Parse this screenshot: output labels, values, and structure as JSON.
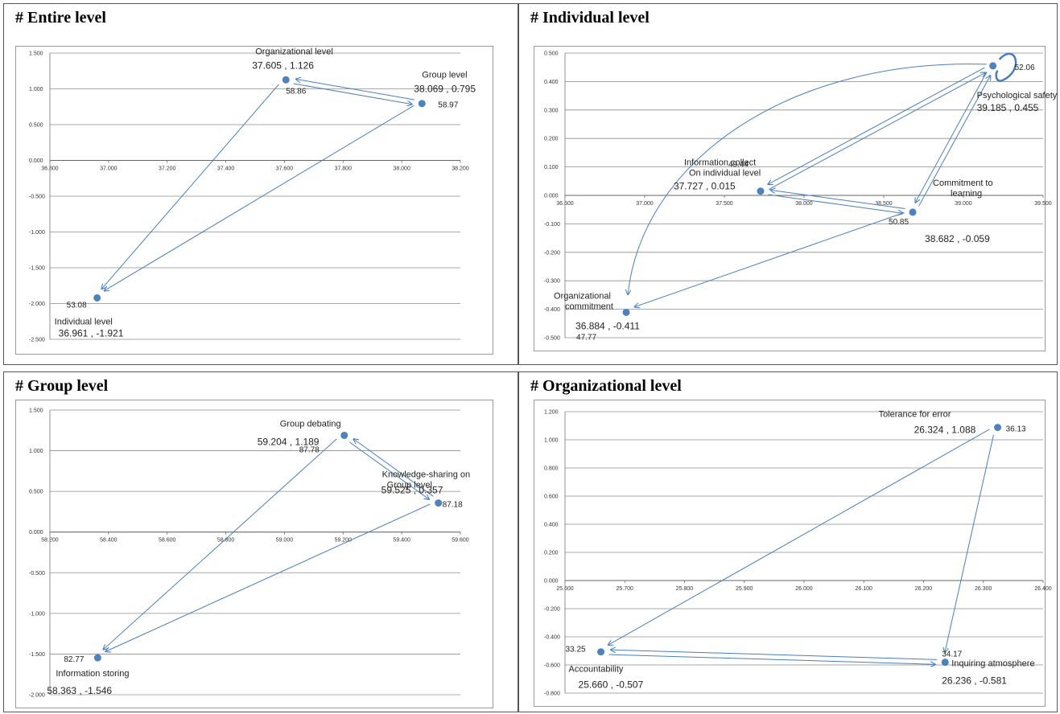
{
  "charts": [
    {
      "panel_title": "# Entire level",
      "type": "scatter",
      "xlim": [
        36.8,
        38.2
      ],
      "xticks": [
        36.8,
        37.0,
        37.2,
        37.4,
        37.6,
        37.8,
        38.0,
        38.2
      ],
      "xtick_labels": [
        "36.800",
        "37.000",
        "37.200",
        "37.400",
        "37.600",
        "37.800",
        "38.000",
        "38.200"
      ],
      "ylim": [
        -2.5,
        1.5
      ],
      "yticks": [
        1.5,
        1.0,
        0.5,
        0.0,
        -0.5,
        -1.0,
        -1.5,
        -2.0,
        -2.5
      ],
      "ytick_labels": [
        "1.500",
        "1.000",
        "0.500",
        "0.000",
        "-0.500",
        "-1.000",
        "-1.500",
        "-2.000",
        "-2.500"
      ],
      "points": [
        {
          "name": "Organizational level",
          "coord_label": "37.605 , 1.126",
          "value_label": "58.86",
          "x": 37.605,
          "y": 1.126
        },
        {
          "name": "Group level",
          "coord_label": "38.069 , 0.795",
          "value_label": "58.97",
          "x": 38.069,
          "y": 0.795
        },
        {
          "name": "Individual level",
          "coord_label": "36.961 , -1.921",
          "value_label": "53.08",
          "x": 36.961,
          "y": -1.921
        }
      ],
      "arrows": [
        {
          "from": 1,
          "to": 0
        },
        {
          "from": 0,
          "to": 1
        },
        {
          "from": 0,
          "to": 2
        },
        {
          "from": 1,
          "to": 2
        }
      ]
    },
    {
      "panel_title": "# Individual level",
      "type": "scatter",
      "xlim": [
        36.5,
        39.5
      ],
      "xticks": [
        36.5,
        37.0,
        37.5,
        38.0,
        38.5,
        39.0,
        39.5
      ],
      "xtick_labels": [
        "36.500",
        "37.000",
        "37.500",
        "38.000",
        "38.500",
        "39.000",
        "39.500"
      ],
      "ylim": [
        -0.5,
        0.5
      ],
      "yticks": [
        0.5,
        0.4,
        0.3,
        0.2,
        0.1,
        0.0,
        -0.1,
        -0.2,
        -0.3,
        -0.4,
        -0.5
      ],
      "ytick_labels": [
        "0.500",
        "0.400",
        "0.300",
        "0.200",
        "0.100",
        "0.000",
        "-0.100",
        "-0.200",
        "-0.300",
        "-0.400",
        "-0.500"
      ],
      "points": [
        {
          "name": "Psychological  safety",
          "coord_label": "39.185 , 0.455",
          "value_label": "52.06",
          "x": 39.185,
          "y": 0.455
        },
        {
          "name": "Information collect On individual level",
          "coord_label": "37.727 , 0.015",
          "value_label": "49.44",
          "x": 37.727,
          "y": 0.015
        },
        {
          "name": "Commitment to learning",
          "coord_label": "38.682 , -0.059",
          "value_label": "50.85",
          "x": 38.682,
          "y": -0.059
        },
        {
          "name": "Organizational commitment",
          "coord_label": "36.884 , -0.411",
          "value_label": "47.77",
          "x": 36.884,
          "y": -0.411
        }
      ],
      "arrows": [
        {
          "from": 0,
          "to": 1
        },
        {
          "from": 1,
          "to": 0
        },
        {
          "from": 2,
          "to": 1
        },
        {
          "from": 1,
          "to": 2
        },
        {
          "from": 2,
          "to": 0
        },
        {
          "from": 0,
          "to": 2
        },
        {
          "from": 2,
          "to": 3
        },
        {
          "from": 0,
          "to": 3
        },
        {
          "from": 0,
          "to": 0
        }
      ]
    },
    {
      "panel_title": "# Group level",
      "type": "scatter",
      "xlim": [
        58.2,
        59.6
      ],
      "xticks": [
        58.2,
        58.4,
        58.6,
        58.8,
        59.0,
        59.2,
        59.4,
        59.6
      ],
      "xtick_labels": [
        "58.200",
        "58.400",
        "58.600",
        "58.800",
        "59.000",
        "59.200",
        "59.400",
        "59.600"
      ],
      "ylim": [
        -2.0,
        1.5
      ],
      "yticks": [
        1.5,
        1.0,
        0.5,
        0.0,
        -0.5,
        -1.0,
        -1.5,
        -2.0
      ],
      "ytick_labels": [
        "1.500",
        "1.000",
        "0.500",
        "0.000",
        "-0.500",
        "-1.000",
        "-1.500",
        "-2.000"
      ],
      "points": [
        {
          "name": "Group debating",
          "coord_label": "59.204 , 1.189",
          "value_label": "87.78",
          "x": 59.204,
          "y": 1.189
        },
        {
          "name": "Knowledge-sharing on Group level",
          "coord_label": "59.525 , 0.357",
          "value_label": "87.18",
          "x": 59.525,
          "y": 0.357
        },
        {
          "name": "Information storing",
          "coord_label": "58.363 , -1.546",
          "value_label": "82.77",
          "x": 58.363,
          "y": -1.546
        }
      ],
      "arrows": [
        {
          "from": 0,
          "to": 1
        },
        {
          "from": 1,
          "to": 0
        },
        {
          "from": 0,
          "to": 2
        },
        {
          "from": 1,
          "to": 2
        }
      ]
    },
    {
      "panel_title": "# Organizational level",
      "type": "scatter",
      "xlim": [
        25.6,
        26.4
      ],
      "xticks": [
        25.6,
        25.7,
        25.8,
        25.9,
        26.0,
        26.1,
        26.2,
        26.3,
        26.4
      ],
      "xtick_labels": [
        "25.600",
        "25.700",
        "25.800",
        "25.900",
        "26.000",
        "26.100",
        "26.200",
        "26.300",
        "26.400"
      ],
      "ylim": [
        -0.8,
        1.2
      ],
      "yticks": [
        1.2,
        1.0,
        0.8,
        0.6,
        0.4,
        0.2,
        0.0,
        -0.2,
        -0.4,
        -0.6,
        -0.8
      ],
      "ytick_labels": [
        "1.200",
        "1.000",
        "0.800",
        "0.600",
        "0.400",
        "0.200",
        "0.000",
        "-0.200",
        "-0.400",
        "-0.600",
        "-0.800"
      ],
      "points": [
        {
          "name": "Tolerance for error",
          "coord_label": "26.324 , 1.088",
          "value_label": "36.13",
          "x": 26.324,
          "y": 1.088
        },
        {
          "name": "Accountability",
          "coord_label": "25.660 , -0.507",
          "value_label": "33.25",
          "x": 25.66,
          "y": -0.507
        },
        {
          "name": "Inquiring atmosphere",
          "coord_label": "26.236 , -0.581",
          "value_label": "34.17",
          "x": 26.236,
          "y": -0.581
        }
      ],
      "arrows": [
        {
          "from": 0,
          "to": 1
        },
        {
          "from": 0,
          "to": 2
        },
        {
          "from": 1,
          "to": 2
        },
        {
          "from": 2,
          "to": 1
        }
      ]
    }
  ],
  "colors": {
    "point": "#4f81bd",
    "arrow": "#4a7ebb",
    "grid": "#8c8c8c",
    "axis": "#8c8c8c"
  }
}
